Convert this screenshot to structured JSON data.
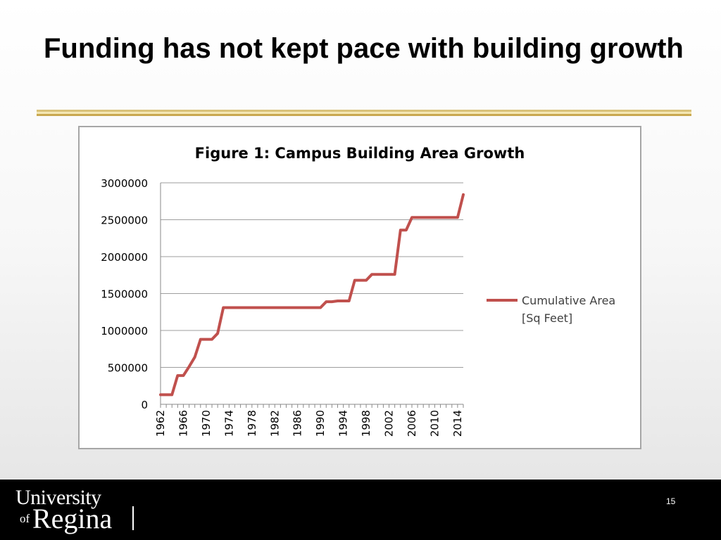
{
  "slide": {
    "title": "Funding has not kept pace with building growth",
    "page_number": "15",
    "rule_colors": [
      "#d9c27a",
      "#f4e7b4",
      "#c9a84f"
    ]
  },
  "logo": {
    "line1": "University",
    "line2": "of",
    "line3": "Regina"
  },
  "chart_data": {
    "type": "line",
    "title": "Figure 1: Campus Building Area Growth",
    "xlabel": "",
    "ylabel": "",
    "xlim": [
      1962,
      2015
    ],
    "ylim": [
      0,
      3000000
    ],
    "yticks": [
      0,
      500000,
      1000000,
      1500000,
      2000000,
      2500000,
      3000000
    ],
    "ytick_labels": [
      "0",
      "500000",
      "1000000",
      "1500000",
      "2000000",
      "2500000",
      "3000000"
    ],
    "xticks": [
      1962,
      1966,
      1970,
      1974,
      1978,
      1982,
      1986,
      1990,
      1994,
      1998,
      2002,
      2006,
      2010,
      2014
    ],
    "xtick_labels": [
      "1962",
      "1966",
      "1970",
      "1974",
      "1978",
      "1982",
      "1986",
      "1990",
      "1994",
      "1998",
      "2002",
      "2006",
      "2010",
      "2014"
    ],
    "grid": true,
    "legend_position": "right",
    "series": [
      {
        "name": "Cumulative Area [Sq Feet]",
        "color": "#c0504d",
        "x": [
          1962,
          1963,
          1964,
          1965,
          1966,
          1967,
          1968,
          1969,
          1970,
          1971,
          1972,
          1973,
          1974,
          1975,
          1976,
          1977,
          1978,
          1979,
          1980,
          1981,
          1982,
          1983,
          1984,
          1985,
          1986,
          1987,
          1988,
          1989,
          1990,
          1991,
          1992,
          1993,
          1994,
          1995,
          1996,
          1997,
          1998,
          1999,
          2000,
          2001,
          2002,
          2003,
          2004,
          2005,
          2006,
          2007,
          2008,
          2009,
          2010,
          2011,
          2012,
          2013,
          2014,
          2015
        ],
        "y": [
          130000,
          130000,
          130000,
          390000,
          390000,
          510000,
          640000,
          880000,
          880000,
          880000,
          960000,
          1310000,
          1310000,
          1310000,
          1310000,
          1310000,
          1310000,
          1310000,
          1310000,
          1310000,
          1310000,
          1310000,
          1310000,
          1310000,
          1310000,
          1310000,
          1310000,
          1310000,
          1310000,
          1390000,
          1390000,
          1400000,
          1400000,
          1400000,
          1680000,
          1680000,
          1680000,
          1760000,
          1760000,
          1760000,
          1760000,
          1760000,
          2360000,
          2360000,
          2530000,
          2530000,
          2530000,
          2530000,
          2530000,
          2530000,
          2530000,
          2530000,
          2530000,
          2840000
        ]
      }
    ]
  }
}
